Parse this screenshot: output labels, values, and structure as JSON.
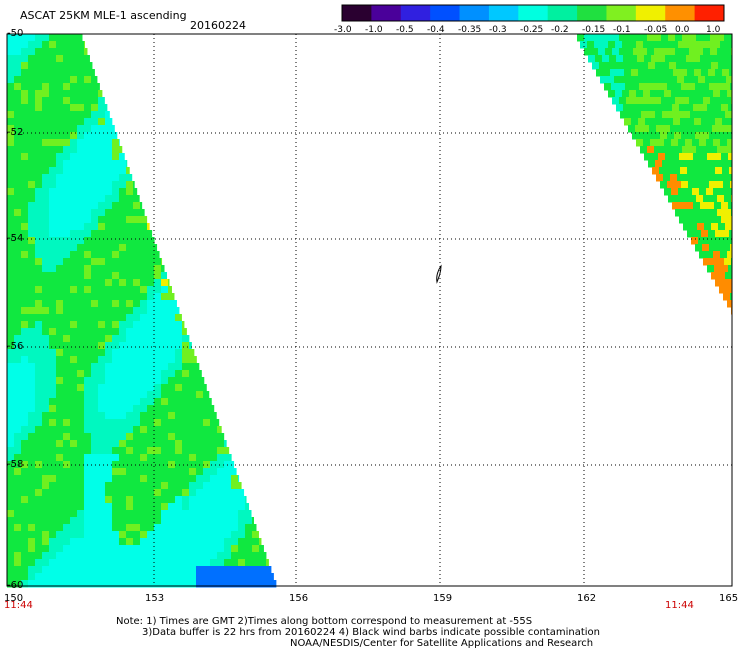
{
  "header": {
    "product_title": "ASCAT 25KM MLE-1 ascending",
    "date": "20160224"
  },
  "colorbar": {
    "labels": [
      "-3.0",
      "-1.0",
      "-0.5",
      "-0.4",
      "-0.35",
      "-0.3",
      "-0.25",
      "-0.2",
      "-0.15",
      "-0.1",
      "-0.05",
      "0.0",
      "1.0"
    ],
    "colors": [
      "#2a0030",
      "#4a009a",
      "#3020e0",
      "#0050ff",
      "#0090ff",
      "#00c8ff",
      "#00ffe0",
      "#00f0a0",
      "#20e040",
      "#80f020",
      "#f0f000",
      "#ff9000",
      "#ff2000"
    ]
  },
  "axes": {
    "y_labels": [
      "-50",
      "-52",
      "-54",
      "-56",
      "-58",
      "-60"
    ],
    "x_labels": [
      "150",
      "153",
      "156",
      "159",
      "162",
      "165"
    ],
    "time_left": "11:44",
    "time_right": "11:44"
  },
  "notes": {
    "line1": "Note: 1) Times are GMT 2)Times along bottom correspond to measurement at -55S",
    "line2": "3)Data buffer is 22 hrs from 20160224 4) Black wind barbs indicate possible contamination",
    "line3": "NOAA/NESDIS/Center for Satellite Applications and Research"
  },
  "map": {
    "lon_range": [
      150,
      165
    ],
    "lat_range": [
      -60,
      -50
    ],
    "legend_colors": {
      "blue": "#0070ff",
      "cyan": "#00ffe8",
      "teal": "#00f8c0",
      "green": "#10e840",
      "lime": "#70f020",
      "yellow": "#f0f000",
      "orange": "#ff8c00"
    }
  }
}
